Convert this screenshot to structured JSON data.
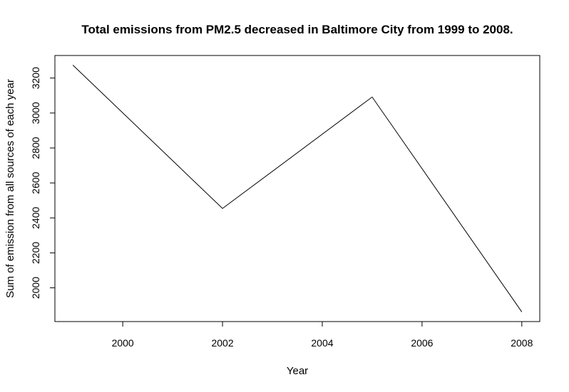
{
  "chart_data": {
    "type": "line",
    "title": "Total emissions from PM2.5 decreased in Baltimore City from 1999 to 2008.",
    "xlabel": "Year",
    "ylabel": "Sum of emission from all sources of each year",
    "x": [
      1999,
      2002,
      2005,
      2008
    ],
    "series": [
      {
        "values": [
          3274.18,
          2453.92,
          3091.35,
          1862.28
        ]
      }
    ],
    "xlim": [
      1998.64,
      2008.36
    ],
    "ylim": [
      1807,
      3329
    ],
    "xticks": [
      2000,
      2002,
      2004,
      2006,
      2008
    ],
    "yticks": [
      2000,
      2200,
      2400,
      2600,
      2800,
      3000,
      3200
    ],
    "grid": false,
    "line_color": "#000000"
  }
}
